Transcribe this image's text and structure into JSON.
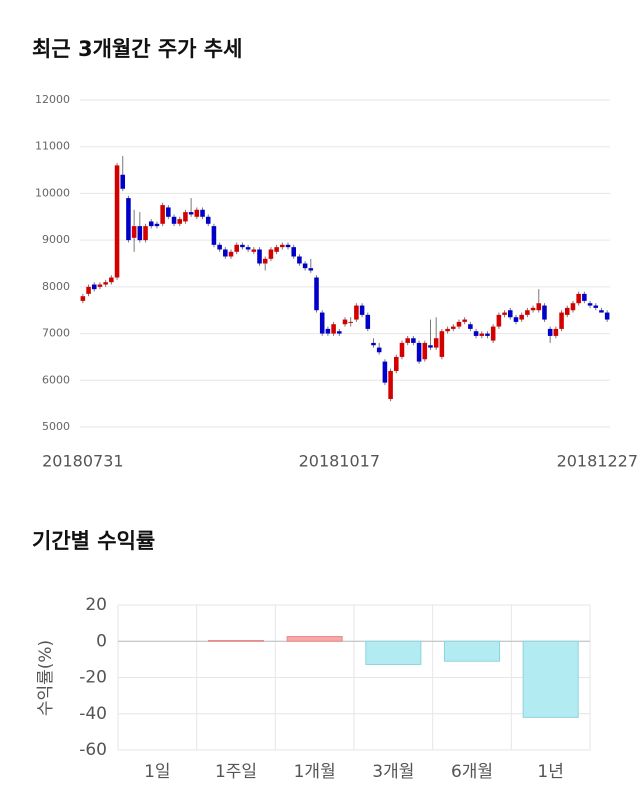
{
  "chart_data": [
    {
      "type": "candlestick",
      "title": "최근 3개월간 주가 추세",
      "categories": [
        "20180731",
        null,
        null,
        null,
        null,
        null,
        null,
        null,
        null,
        null,
        null,
        null,
        null,
        null,
        null,
        null,
        null,
        null,
        null,
        null,
        null,
        null,
        null,
        null,
        null,
        null,
        null,
        null,
        null,
        null,
        null,
        null,
        null,
        null,
        null,
        null,
        null,
        null,
        null,
        null,
        null,
        null,
        null,
        null,
        null,
        "20181017",
        null,
        null,
        null,
        null,
        null,
        null,
        null,
        null,
        null,
        null,
        null,
        null,
        null,
        null,
        null,
        null,
        null,
        null,
        null,
        null,
        null,
        null,
        null,
        null,
        null,
        null,
        null,
        null,
        null,
        null,
        null,
        null,
        null,
        null,
        null,
        null,
        null,
        null,
        null,
        null,
        null,
        null,
        null,
        null,
        null,
        null,
        "20181227"
      ],
      "open": [
        7700,
        7850,
        8050,
        8000,
        8050,
        8100,
        8200,
        10400,
        9900,
        9050,
        9300,
        9000,
        9400,
        9350,
        9350,
        9700,
        9500,
        9350,
        9400,
        9600,
        9500,
        9650,
        9500,
        9300,
        8900,
        8800,
        8650,
        8750,
        8900,
        8850,
        8750,
        8800,
        8500,
        8600,
        8750,
        8850,
        8900,
        8850,
        8650,
        8500,
        8400,
        8200,
        7450,
        7100,
        7000,
        7050,
        7200,
        7250,
        7300,
        7600,
        7400,
        6800,
        6700,
        6400,
        5600,
        6200,
        6500,
        6800,
        6900,
        6800,
        6450,
        6750,
        6700,
        6500,
        7050,
        7100,
        7150,
        7250,
        7200,
        7050,
        6950,
        7000,
        6850,
        7150,
        7400,
        7500,
        7350,
        7300,
        7400,
        7500,
        7500,
        7600,
        7100,
        6950,
        7100,
        7400,
        7500,
        7650,
        7850,
        7650,
        7600,
        7500,
        7450
      ],
      "high": [
        7850,
        8050,
        8100,
        8100,
        8150,
        8250,
        10650,
        10800,
        9950,
        9650,
        9600,
        9350,
        9450,
        9400,
        9800,
        9750,
        9550,
        9500,
        9650,
        9900,
        9700,
        9700,
        9550,
        9350,
        8950,
        8850,
        8800,
        8950,
        8950,
        8900,
        8850,
        8850,
        8650,
        8850,
        8900,
        8950,
        8950,
        8900,
        8700,
        8550,
        8600,
        8250,
        7500,
        7150,
        7250,
        7100,
        7350,
        7350,
        7650,
        7650,
        7450,
        6900,
        6800,
        6450,
        6250,
        6550,
        6850,
        6950,
        6950,
        6850,
        6850,
        7300,
        7350,
        7100,
        7150,
        7200,
        7300,
        7350,
        7250,
        7100,
        7050,
        7050,
        7200,
        7450,
        7500,
        7550,
        7400,
        7450,
        7550,
        7600,
        7950,
        7650,
        7150,
        7150,
        7500,
        7600,
        7700,
        7900,
        7900,
        7700,
        7650,
        7550,
        7500
      ],
      "low": [
        7650,
        7800,
        7900,
        7950,
        8000,
        8050,
        8150,
        10050,
        8950,
        8750,
        8950,
        8950,
        9250,
        9250,
        9300,
        9450,
        9300,
        9300,
        9350,
        9500,
        9450,
        9450,
        9300,
        8850,
        8750,
        8600,
        8600,
        8700,
        8800,
        8750,
        8700,
        8450,
        8350,
        8550,
        8700,
        8800,
        8800,
        8600,
        8450,
        8350,
        8300,
        7450,
        6950,
        6950,
        6950,
        6950,
        7150,
        7150,
        7250,
        7350,
        7050,
        6700,
        6550,
        5900,
        5550,
        6150,
        6450,
        6750,
        6750,
        6350,
        6400,
        6650,
        6650,
        6450,
        7000,
        7050,
        7100,
        7200,
        7050,
        6900,
        6900,
        6900,
        6800,
        7100,
        7350,
        7300,
        7200,
        7250,
        7350,
        7450,
        7450,
        7250,
        6800,
        6900,
        7050,
        7350,
        7450,
        7600,
        7650,
        7550,
        7500,
        7450,
        7250
      ],
      "close": [
        7800,
        8000,
        7950,
        8050,
        8100,
        8200,
        10600,
        10100,
        9000,
        9300,
        9000,
        9300,
        9300,
        9300,
        9750,
        9500,
        9350,
        9450,
        9600,
        9550,
        9650,
        9500,
        9350,
        8900,
        8800,
        8650,
        8750,
        8900,
        8850,
        8800,
        8800,
        8500,
        8600,
        8800,
        8850,
        8900,
        8850,
        8650,
        8500,
        8400,
        8350,
        7500,
        7000,
        7000,
        7200,
        7000,
        7300,
        7250,
        7600,
        7400,
        7100,
        6750,
        6600,
        5950,
        6200,
        6500,
        6800,
        6900,
        6800,
        6400,
        6800,
        6700,
        6900,
        7050,
        7100,
        7150,
        7250,
        7300,
        7100,
        6950,
        7000,
        6950,
        7150,
        7400,
        7450,
        7350,
        7250,
        7400,
        7500,
        7550,
        7650,
        7300,
        6950,
        7100,
        7450,
        7550,
        7650,
        7850,
        7700,
        7600,
        7550,
        7450,
        7300
      ],
      "up_color": "#d40000",
      "down_color": "#0000c8",
      "ylim": [
        5000,
        12000
      ],
      "yticks": [
        5000,
        6000,
        7000,
        8000,
        9000,
        10000,
        11000,
        12000
      ],
      "grid": true
    },
    {
      "type": "bar",
      "title": "기간별 수익률",
      "y_label": "수익률(%)",
      "categories": [
        "1일",
        "1주일",
        "1개월",
        "3개월",
        "6개월",
        "1년"
      ],
      "values": [
        0,
        0.4,
        2.6,
        -12.8,
        -11,
        -42
      ],
      "positive_color": "#f7a8a8",
      "positive_edge": "#e88a8a",
      "negative_color": "#b3ebf3",
      "negative_edge": "#8fd3de",
      "ylim": [
        -60,
        20
      ],
      "yticks": [
        -60,
        -40,
        -20,
        0,
        20
      ],
      "grid": true
    }
  ]
}
